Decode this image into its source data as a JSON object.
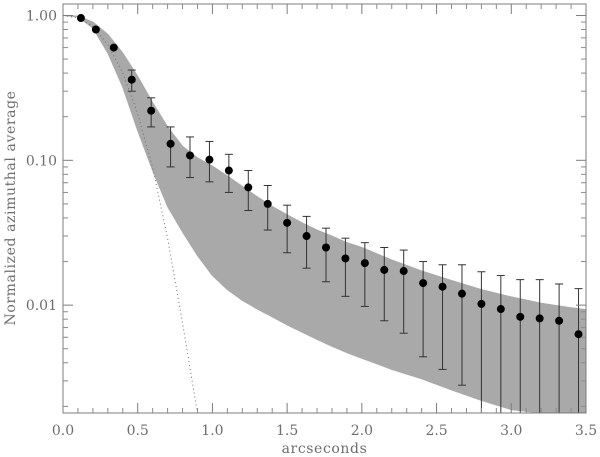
{
  "chart_data": {
    "type": "scatter",
    "title": "",
    "xlabel": "arcseconds",
    "ylabel": "Normalized azimuthal average",
    "xlim": [
      0.0,
      3.5
    ],
    "ylim": [
      0.0018,
      1.2
    ],
    "yscale": "log",
    "grid": false,
    "x_ticks": [
      0.0,
      0.5,
      1.0,
      1.5,
      2.0,
      2.5,
      3.0,
      3.5
    ],
    "x_tick_labels": [
      "0.0",
      "0.5",
      "1.0",
      "1.5",
      "2.0",
      "2.5",
      "3.0",
      "3.5"
    ],
    "y_ticks": [
      1.0,
      0.1,
      0.01
    ],
    "y_tick_labels": [
      "1.00",
      "0.10",
      "0.01"
    ],
    "series": [
      {
        "kind": "points_with_error_bars",
        "color": "#000000",
        "x": [
          0.12,
          0.22,
          0.34,
          0.46,
          0.59,
          0.72,
          0.85,
          0.98,
          1.11,
          1.24,
          1.37,
          1.5,
          1.63,
          1.76,
          1.89,
          2.02,
          2.15,
          2.28,
          2.41,
          2.54,
          2.67,
          2.8,
          2.93,
          3.06,
          3.19,
          3.32,
          3.45
        ],
        "y": [
          0.96,
          0.8,
          0.6,
          0.36,
          0.22,
          0.13,
          0.108,
          0.101,
          0.085,
          0.065,
          0.05,
          0.037,
          0.03,
          0.025,
          0.021,
          0.0195,
          0.0175,
          0.0172,
          0.0142,
          0.0134,
          0.012,
          0.0102,
          0.0094,
          0.0083,
          0.0081,
          0.0078,
          0.0063
        ],
        "y_upper": [
          0.96,
          0.8,
          0.6,
          0.42,
          0.27,
          0.17,
          0.145,
          0.135,
          0.11,
          0.085,
          0.067,
          0.049,
          0.041,
          0.034,
          0.029,
          0.027,
          0.025,
          0.024,
          0.02,
          0.019,
          0.019,
          0.017,
          0.016,
          0.015,
          0.015,
          0.014,
          0.013
        ],
        "y_lower": [
          0.96,
          0.8,
          0.6,
          0.3,
          0.17,
          0.09,
          0.076,
          0.071,
          0.06,
          0.045,
          0.033,
          0.023,
          0.018,
          0.0145,
          0.0115,
          0.0098,
          0.0078,
          0.0064,
          0.0044,
          0.0036,
          0.0028,
          0.0018,
          0.0018,
          0.0018,
          0.0018,
          0.0018,
          0.0018
        ]
      },
      {
        "kind": "shaded_band",
        "color": "#a9a9a9",
        "x": [
          0.0,
          0.1,
          0.2,
          0.3,
          0.4,
          0.5,
          0.6,
          0.7,
          0.8,
          0.9,
          1.0,
          1.1,
          1.2,
          1.3,
          1.4,
          1.5,
          1.6,
          1.7,
          1.8,
          1.9,
          2.0,
          2.2,
          2.4,
          2.6,
          2.8,
          3.0,
          3.2,
          3.4,
          3.5
        ],
        "upper": [
          1.0,
          0.99,
          0.9,
          0.74,
          0.55,
          0.38,
          0.25,
          0.17,
          0.125,
          0.104,
          0.091,
          0.078,
          0.066,
          0.056,
          0.048,
          0.042,
          0.037,
          0.033,
          0.03,
          0.027,
          0.025,
          0.0205,
          0.0172,
          0.0148,
          0.0128,
          0.0114,
          0.0103,
          0.0096,
          0.0093
        ],
        "lower": [
          1.0,
          0.98,
          0.82,
          0.55,
          0.32,
          0.16,
          0.085,
          0.048,
          0.032,
          0.022,
          0.016,
          0.0128,
          0.0108,
          0.0094,
          0.0083,
          0.0073,
          0.0065,
          0.0058,
          0.0052,
          0.0047,
          0.0043,
          0.0036,
          0.0031,
          0.0026,
          0.0022,
          0.0019,
          0.0018,
          0.0018,
          0.0018
        ]
      },
      {
        "kind": "dotted_line",
        "color": "#6f6f6f",
        "x": [
          0.0,
          0.1,
          0.2,
          0.3,
          0.4,
          0.5,
          0.6,
          0.7,
          0.8,
          0.9
        ],
        "y": [
          1.0,
          0.96,
          0.84,
          0.63,
          0.4,
          0.21,
          0.089,
          0.029,
          0.0075,
          0.0018
        ]
      }
    ]
  }
}
